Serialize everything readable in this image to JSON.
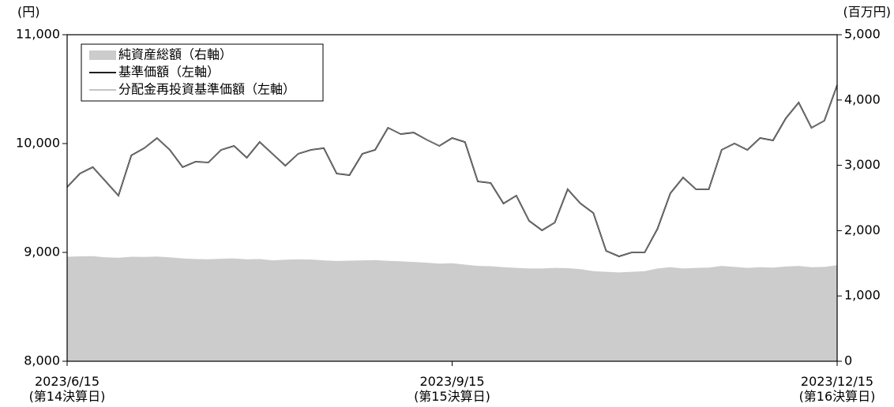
{
  "chart_data": {
    "type": "line",
    "y_label": "(円)",
    "y2_label": "(百万円)",
    "categories": [
      "2023/6/15\n(第14決算日)",
      null,
      null,
      null,
      null,
      null,
      null,
      null,
      null,
      null,
      null,
      null,
      null,
      null,
      null,
      null,
      null,
      null,
      null,
      null,
      null,
      null,
      null,
      null,
      null,
      null,
      null,
      null,
      null,
      null,
      "2023/9/15\n(第15決算日)",
      null,
      null,
      null,
      null,
      null,
      null,
      null,
      null,
      null,
      null,
      null,
      null,
      null,
      null,
      null,
      null,
      null,
      null,
      null,
      null,
      null,
      null,
      null,
      null,
      null,
      null,
      null,
      null,
      null,
      "2023/12/15\n(第16決算日)"
    ],
    "ylim": [
      8000,
      11000
    ],
    "yticks": [
      {
        "value": 8000,
        "label": "8,000"
      },
      {
        "value": 9000,
        "label": "9,000"
      },
      {
        "value": 10000,
        "label": "10,000"
      },
      {
        "value": 11000,
        "label": "11,000"
      }
    ],
    "y2lim": [
      0,
      5000
    ],
    "y2ticks": [
      0,
      {
        "value": 1000,
        "label": "1,000"
      },
      {
        "value": 2000,
        "label": "2,000"
      },
      {
        "value": 3000,
        "label": "3,000"
      },
      {
        "value": 4000,
        "label": "4,000"
      },
      {
        "value": 5000,
        "label": "5,000"
      }
    ],
    "series": [
      {
        "name": "純資産総額（右軸）",
        "type": "area",
        "axis": "y2",
        "color": "#cccccc",
        "values": [
          1600,
          1606,
          1610,
          1590,
          1585,
          1600,
          1598,
          1604,
          1590,
          1575,
          1565,
          1560,
          1570,
          1575,
          1560,
          1565,
          1545,
          1555,
          1560,
          1558,
          1545,
          1535,
          1540,
          1545,
          1550,
          1538,
          1530,
          1520,
          1510,
          1495,
          1500,
          1480,
          1460,
          1455,
          1440,
          1430,
          1420,
          1420,
          1430,
          1425,
          1410,
          1380,
          1370,
          1360,
          1370,
          1380,
          1420,
          1440,
          1420,
          1430,
          1435,
          1460,
          1445,
          1430,
          1440,
          1435,
          1450,
          1460,
          1440,
          1445,
          1470
        ]
      },
      {
        "name": "基準価額（左軸）",
        "type": "line",
        "color": "#000000",
        "values": [
          9601,
          9725,
          9783,
          9652,
          9522,
          9891,
          9957,
          10051,
          9942,
          9783,
          9833,
          9826,
          9942,
          9978,
          9870,
          10014,
          9906,
          9797,
          9906,
          9942,
          9957,
          9725,
          9710,
          9906,
          9942,
          10145,
          10087,
          10101,
          10036,
          9978,
          10051,
          10014,
          9652,
          9638,
          9449,
          9522,
          9290,
          9203,
          9275,
          9580,
          9449,
          9362,
          9014,
          8964,
          9000,
          9000,
          9217,
          9543,
          9688,
          9580,
          9580,
          9942,
          10000,
          9942,
          10051,
          10029,
          10232,
          10377,
          10145,
          10210,
          10536
        ]
      },
      {
        "name": "分配金再投資基準価額（左軸）",
        "type": "line",
        "color": "#888888",
        "values": [
          9601,
          9725,
          9783,
          9652,
          9522,
          9891,
          9957,
          10051,
          9942,
          9783,
          9833,
          9826,
          9942,
          9978,
          9870,
          10014,
          9906,
          9797,
          9906,
          9942,
          9957,
          9725,
          9710,
          9906,
          9942,
          10145,
          10087,
          10101,
          10036,
          9978,
          10051,
          10014,
          9652,
          9638,
          9449,
          9522,
          9290,
          9203,
          9275,
          9580,
          9449,
          9362,
          9014,
          8964,
          9000,
          9000,
          9217,
          9543,
          9688,
          9580,
          9580,
          9942,
          10000,
          9942,
          10051,
          10029,
          10232,
          10377,
          10145,
          10210,
          10536
        ]
      }
    ]
  }
}
